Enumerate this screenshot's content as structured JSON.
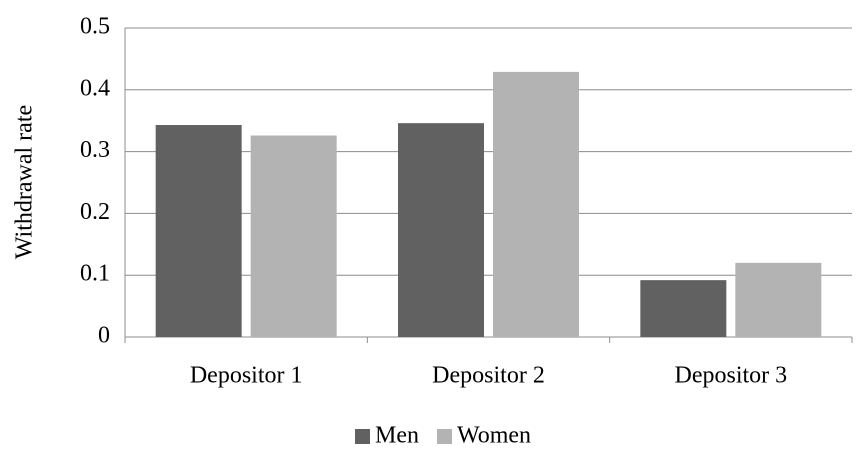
{
  "chart_data": {
    "type": "bar",
    "categories": [
      "Depositor 1",
      "Depositor 2",
      "Depositor 3"
    ],
    "series": [
      {
        "name": "Men",
        "color": "#616161",
        "values": [
          0.343,
          0.346,
          0.092
        ]
      },
      {
        "name": "Women",
        "color": "#b3b3b3",
        "values": [
          0.326,
          0.429,
          0.12
        ]
      }
    ],
    "ylabel": "Withdrawal rate",
    "ylim": [
      0,
      0.5
    ],
    "yticks": [
      0,
      0.1,
      0.2,
      0.3,
      0.4,
      0.5
    ],
    "grid": true,
    "legend": "bottom"
  }
}
